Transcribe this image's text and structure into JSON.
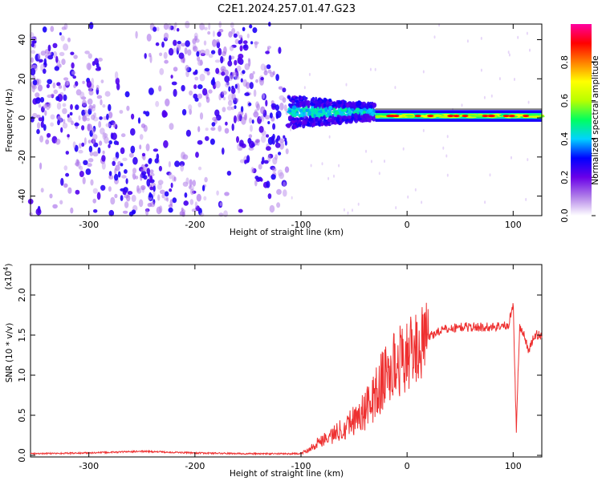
{
  "title": "C2E1.2024.257.01.47.G23",
  "chart_data": [
    {
      "type": "heatmap",
      "xlabel": "Height of straight line (km)",
      "ylabel": "Frequency (Hz)",
      "xlim": [
        -355,
        127
      ],
      "ylim": [
        -50,
        48
      ],
      "xticks": [
        -300,
        -200,
        -100,
        0,
        100
      ],
      "yticks": [
        -40,
        -20,
        0,
        20,
        40
      ],
      "colorbar": {
        "label": "Normalized spectral amplitude",
        "range": [
          0,
          1
        ],
        "ticks": [
          "0.0",
          "0.2",
          "0.4",
          "0.6",
          "0.8"
        ],
        "colors": [
          "#ffffff",
          "#b07ee8",
          "#6a00e8",
          "#0000ff",
          "#00d2ff",
          "#00ff60",
          "#b8ff00",
          "#ffff00",
          "#ff8000",
          "#ff0000",
          "#ff00a0"
        ]
      },
      "regions": [
        {
          "x": [
            -355,
            -112
          ],
          "freq_range": [
            -50,
            48
          ],
          "level": 0.15
        },
        {
          "x": [
            -112,
            -30
          ],
          "freq_range": [
            -10,
            13
          ],
          "level": 0.35
        },
        {
          "x": [
            -30,
            127
          ],
          "freq_range": [
            -2,
            4
          ],
          "level": 0.6
        }
      ]
    },
    {
      "type": "line",
      "xlabel": "Height of straight line (km)",
      "ylabel": "SNR (10 * v/v)",
      "scale_label": "(x10",
      "scale_exp": "4",
      "scale_close": ")",
      "xlim": [
        -355,
        127
      ],
      "ylim": [
        -0.02,
        2.38
      ],
      "xticks": [
        -300,
        -200,
        -100,
        0,
        100
      ],
      "yticks": [
        "0.0",
        "0.5",
        "1.0",
        "1.5",
        "2.0"
      ],
      "line_color": "#ee3030",
      "series": [
        {
          "x": [
            -355,
            -300,
            -250,
            -200,
            -150,
            -100,
            -90,
            -80,
            -70,
            -60,
            -50,
            -40,
            -30,
            -20,
            -10,
            0,
            10,
            20,
            30,
            40,
            50,
            60,
            70,
            80,
            90,
            95,
            100,
            103,
            106,
            110,
            115,
            120,
            127
          ],
          "values": [
            0.02,
            0.03,
            0.05,
            0.03,
            0.02,
            0.02,
            0.1,
            0.2,
            0.25,
            0.35,
            0.45,
            0.55,
            0.75,
            1.0,
            1.15,
            1.25,
            1.35,
            1.48,
            1.55,
            1.58,
            1.6,
            1.6,
            1.6,
            1.6,
            1.62,
            1.6,
            1.9,
            0.3,
            1.6,
            1.5,
            1.3,
            1.5,
            1.5
          ]
        }
      ]
    }
  ]
}
